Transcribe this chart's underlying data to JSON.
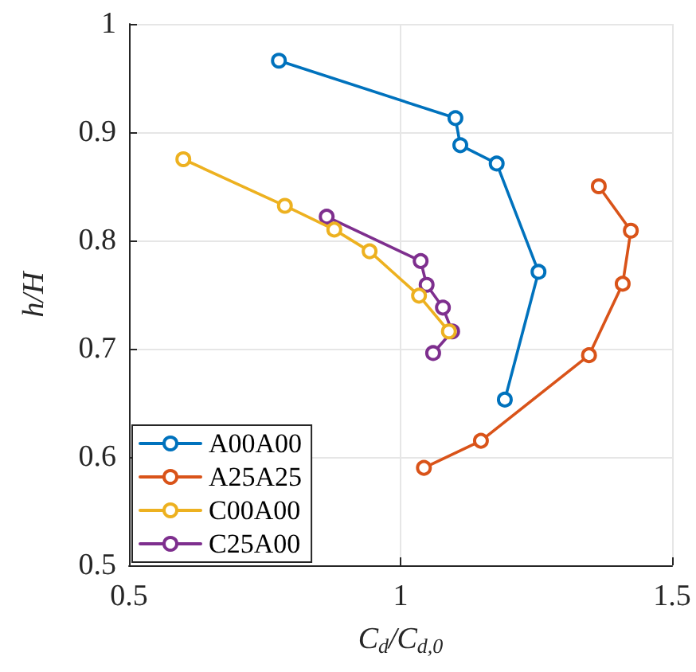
{
  "chart_data": {
    "type": "line",
    "xlabel": "C$_{d}$/C$_{d,0}$",
    "ylabel": "h/H",
    "xlim": [
      0.5,
      1.5
    ],
    "xticks": [
      0.5,
      1,
      1.5
    ],
    "ylim": [
      0.5,
      1
    ],
    "yticks": [
      0.5,
      0.6,
      0.7,
      0.8,
      0.9,
      1
    ],
    "grid": true,
    "legend": "bottom left",
    "marker": "circle",
    "line_style": "solid",
    "series": [
      {
        "name": "A00A00",
        "color": "#0072bd",
        "x": [
          0.776,
          1.101,
          1.11,
          1.177,
          1.254,
          1.192
        ],
        "values": [
          0.966,
          0.913,
          0.888,
          0.871,
          0.771,
          0.653
        ]
      },
      {
        "name": "A25A25",
        "color": "#d95319",
        "x": [
          1.365,
          1.424,
          1.409,
          1.347,
          1.148,
          1.043
        ],
        "values": [
          0.85,
          0.809,
          0.76,
          0.694,
          0.615,
          0.59
        ]
      },
      {
        "name": "C00A00",
        "color": "#edb120",
        "x": [
          0.6,
          0.787,
          0.878,
          0.943,
          1.034,
          1.089
        ],
        "values": [
          0.875,
          0.832,
          0.81,
          0.79,
          0.749,
          0.716
        ]
      },
      {
        "name": "C25A00",
        "color": "#7e2f8e",
        "x": [
          0.864,
          1.037,
          1.048,
          1.078,
          1.095,
          1.06
        ],
        "values": [
          0.822,
          0.781,
          0.759,
          0.738,
          0.716,
          0.696
        ]
      }
    ]
  }
}
